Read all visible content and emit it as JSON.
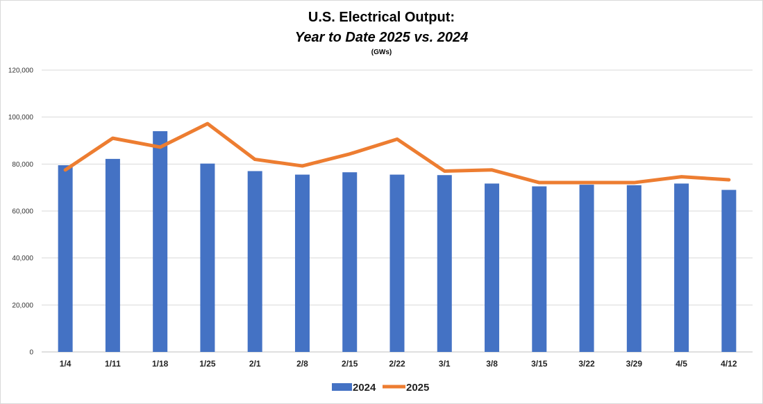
{
  "chart_data": {
    "type": "bar",
    "title": "U.S. Electrical Output:",
    "subtitle": "Year to Date 2025 vs. 2024",
    "unit": "(GWs)",
    "categories": [
      "1/4",
      "1/11",
      "1/18",
      "1/25",
      "2/1",
      "2/8",
      "2/15",
      "2/22",
      "3/1",
      "3/8",
      "3/15",
      "3/22",
      "3/29",
      "4/5",
      "4/12"
    ],
    "series": [
      {
        "name": "2024",
        "type": "bar",
        "color": "#4472C4",
        "values": [
          79500,
          82200,
          94000,
          80200,
          77000,
          75500,
          76500,
          75500,
          75300,
          71700,
          70500,
          71200,
          71000,
          71700,
          69000
        ]
      },
      {
        "name": "2025",
        "type": "line",
        "color": "#ED7D31",
        "values": [
          77500,
          91000,
          87200,
          97200,
          82000,
          79200,
          84300,
          90600,
          77000,
          77500,
          72100,
          72100,
          72100,
          74600,
          73300
        ]
      }
    ],
    "ylim": [
      0,
      120000
    ],
    "yticks": [
      0,
      20000,
      40000,
      60000,
      80000,
      100000,
      120000
    ],
    "ytick_labels": [
      "0",
      "20,000",
      "40,000",
      "60,000",
      "80,000",
      "100,000",
      "120,000"
    ],
    "grid": true,
    "legend": "bottom-center"
  }
}
